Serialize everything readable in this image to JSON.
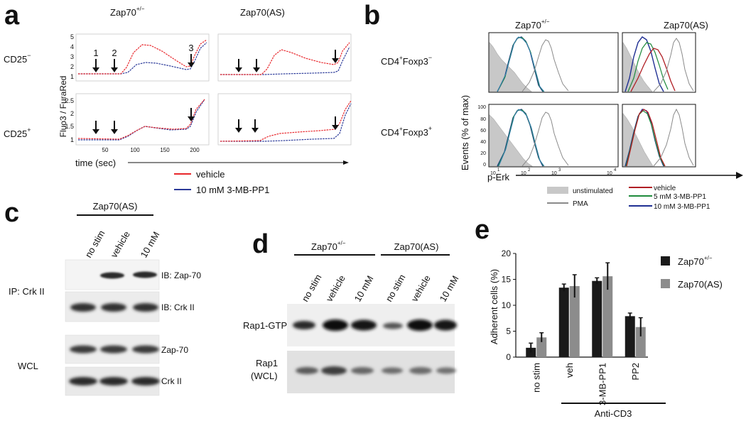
{
  "panel_letters": {
    "a": "a",
    "b": "b",
    "c": "c",
    "d": "d",
    "e": "e"
  },
  "panel_a": {
    "col_titles": [
      "Zap70",
      "Zap70(AS)"
    ],
    "col_title_sup": "+/−",
    "row_labels": [
      {
        "text": "CD25",
        "sup": "−"
      },
      {
        "text": "CD25",
        "sup": "+"
      }
    ],
    "ylabel": "Fluo3 / FuraRed",
    "xlabel": "time (sec)",
    "top_yticks": [
      "5",
      "4",
      "3",
      "2",
      "1"
    ],
    "bottom_yticks": [
      "2.5",
      "2",
      "1.5",
      "1"
    ],
    "xticks": [
      "50",
      "100",
      "150",
      "200"
    ],
    "arrow_numbers": [
      "1",
      "2",
      "3"
    ],
    "legend": [
      {
        "label": "vehicle",
        "color": "#e8262b"
      },
      {
        "label": "10 mM 3-MB-PP1",
        "color": "#2b3a99"
      }
    ]
  },
  "panel_b": {
    "col_titles": [
      "Zap70",
      "Zap70(AS)"
    ],
    "col_title_sup": "+/−",
    "row_labels": [
      {
        "pre": "CD4",
        "sup1": "+",
        "mid": "Foxp3",
        "sup2": "−"
      },
      {
        "pre": "CD4",
        "sup1": "+",
        "mid": "Foxp3",
        "sup2": "+"
      }
    ],
    "ylabel": "Events (% of max)",
    "yticks": [
      "100",
      "80",
      "60",
      "40",
      "20",
      "0"
    ],
    "xlabel": "p-Erk",
    "xticks": [
      "10",
      "1",
      "10",
      "2",
      "10",
      "3",
      "10",
      "4"
    ],
    "legend_left": [
      {
        "label": "unstimulated",
        "color": "#bdbdbd"
      },
      {
        "label": "PMA",
        "color": "#8a8a8a"
      }
    ],
    "legend_right": [
      {
        "label": "vehicle",
        "color": "#b01e24"
      },
      {
        "label": "5 mM 3-MB-PP1",
        "color": "#1e8a3c"
      },
      {
        "label": "10 mM 3-MB-PP1",
        "color": "#1f2f93"
      }
    ]
  },
  "panel_c": {
    "group": "Zap70(AS)",
    "lanes": [
      "no stim",
      "vehicle",
      "10 mM"
    ],
    "ip_label": "IP: Crk II",
    "wcl_label": "WCL",
    "blots": [
      "IB: Zap-70",
      "IB: Crk II",
      "Zap-70",
      "Crk II"
    ]
  },
  "panel_d": {
    "groups": [
      {
        "label": "Zap70",
        "sup": "+/−"
      },
      {
        "label": "Zap70(AS)",
        "sup": ""
      }
    ],
    "lanes": [
      "no stim",
      "vehicle",
      "10 mM",
      "no stim",
      "vehicle",
      "10 mM"
    ],
    "rows": [
      {
        "label": "Rap1-GTP"
      },
      {
        "label": "Rap1",
        "label2": "(WCL)"
      }
    ]
  },
  "chart_data": {
    "type": "bar",
    "categories": [
      "no stim",
      "veh",
      "3-MB-PP1",
      "PP2"
    ],
    "series": [
      {
        "name": "Zap70 +/−",
        "color": "#1a1a1a",
        "values": [
          1.8,
          13.4,
          14.7,
          7.9
        ],
        "errors": [
          0.9,
          0.7,
          0.6,
          0.6
        ]
      },
      {
        "name": "Zap70(AS)",
        "color": "#8c8c8c",
        "values": [
          3.8,
          13.7,
          15.6,
          5.8
        ],
        "errors": [
          0.9,
          2.2,
          2.6,
          1.8
        ]
      }
    ],
    "ylabel": "Adherent cells (%)",
    "ylim": [
      0,
      20
    ],
    "yticks": [
      "0",
      "5",
      "10",
      "15",
      "20"
    ],
    "group_label": "Anti-CD3",
    "legend_position": "top-right"
  }
}
